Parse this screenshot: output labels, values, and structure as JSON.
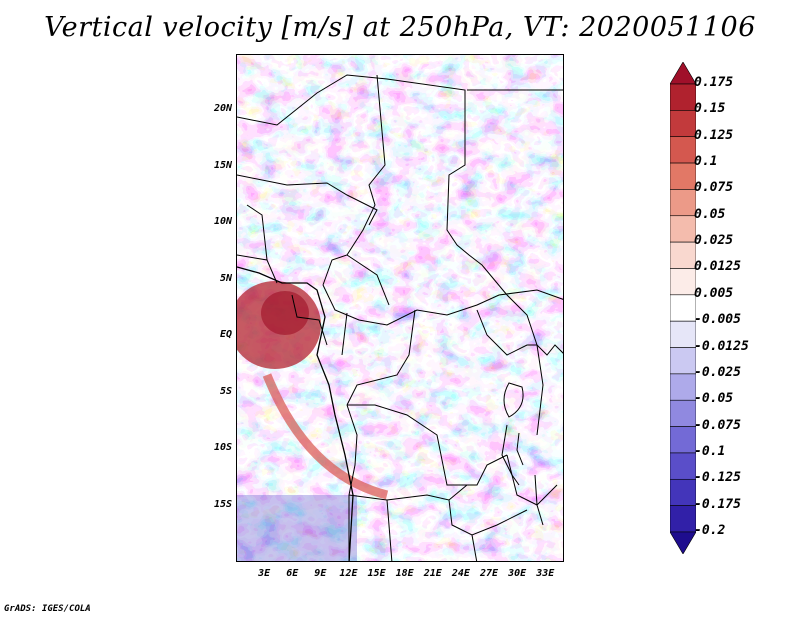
{
  "title": "Vertical velocity [m/s] at 250hPa, VT: 2020051106",
  "map": {
    "lat_range": [
      -20,
      25
    ],
    "lon_range": [
      0,
      35
    ],
    "lat_ticks": [
      "20N",
      "15N",
      "10N",
      "5N",
      "EQ",
      "5S",
      "10S",
      "15S"
    ],
    "lat_tick_values": [
      20,
      15,
      10,
      5,
      0,
      -5,
      -10,
      -15
    ],
    "lon_ticks": [
      "3E",
      "6E",
      "9E",
      "12E",
      "15E",
      "18E",
      "21E",
      "24E",
      "27E",
      "30E",
      "33E"
    ],
    "lon_tick_values": [
      3,
      6,
      9,
      12,
      15,
      18,
      21,
      24,
      27,
      30,
      33
    ],
    "field": "vertical velocity",
    "level": "250hPa"
  },
  "colorbar": {
    "labels": [
      "0.175",
      "0.15",
      "0.125",
      "0.1",
      "0.075",
      "0.05",
      "0.025",
      "0.0125",
      "0.005",
      "-0.005",
      "-0.0125",
      "-0.025",
      "-0.05",
      "-0.075",
      "-0.1",
      "-0.125",
      "-0.175",
      "-0.2"
    ],
    "colors": [
      "#a0102a",
      "#b0222e",
      "#c23a3c",
      "#d4584f",
      "#e27866",
      "#ec9a88",
      "#f4bcad",
      "#f9d8cf",
      "#fcece8",
      "#ffffff",
      "#e6e6f8",
      "#cbc9f2",
      "#aeaaea",
      "#9089e0",
      "#736ad6",
      "#5a4ec9",
      "#4335ba",
      "#3120a8",
      "#1e0d8e"
    ]
  },
  "credit": "GrADS: IGES/COLA"
}
